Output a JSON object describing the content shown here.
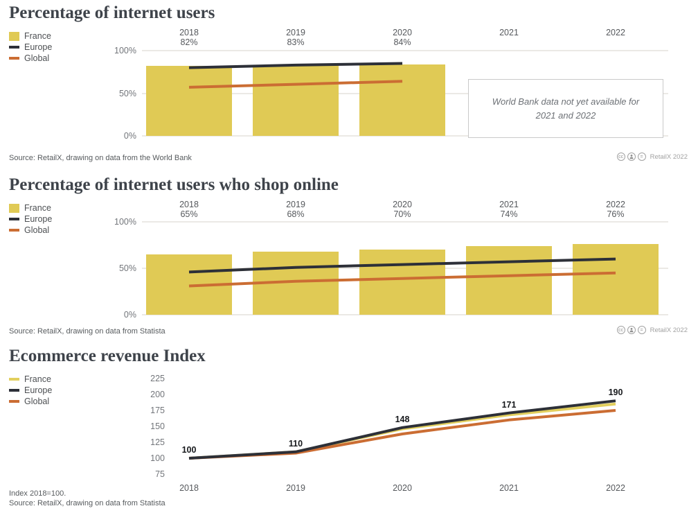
{
  "colors": {
    "france_bar": "#e0ca55",
    "france_line": "#e2cf5e",
    "europe_line": "#2d3038",
    "global_line": "#cb6d33",
    "gridline": "#ebe9e5",
    "title_text": "#3e434a"
  },
  "attribution_icons": [
    "cc-icon",
    "attribution-person-icon",
    "equals-icon"
  ],
  "chart_data": [
    {
      "type": "bar+line",
      "title": "Percentage of internet users",
      "categories": [
        "2018",
        "2019",
        "2020",
        "2021",
        "2022"
      ],
      "value_labels": [
        "82%",
        "83%",
        "84%",
        "",
        ""
      ],
      "y_ticks": [
        "100%",
        "50%",
        "0%"
      ],
      "ylim": [
        0,
        100
      ],
      "legend": [
        "France",
        "Europe",
        "Global"
      ],
      "series": [
        {
          "name": "France",
          "type": "bar",
          "color": "#e0ca55",
          "values": [
            82,
            83,
            84,
            null,
            null
          ]
        },
        {
          "name": "Europe",
          "type": "line",
          "color": "#2d3038",
          "values": [
            80,
            83,
            85,
            null,
            null
          ]
        },
        {
          "name": "Global",
          "type": "line",
          "color": "#cb6d33",
          "values": [
            57,
            60.5,
            64,
            null,
            null
          ]
        }
      ],
      "note": "World Bank data not yet available for 2021 and 2022",
      "note_lines": [
        "World Bank data not yet",
        "available for 2021 and 2022"
      ],
      "source": "Source: RetailX, drawing on data from the World Bank",
      "attribution": "RetailX 2022"
    },
    {
      "type": "bar+line",
      "title": "Percentage of internet users who shop online",
      "categories": [
        "2018",
        "2019",
        "2020",
        "2021",
        "2022"
      ],
      "value_labels": [
        "65%",
        "68%",
        "70%",
        "74%",
        "76%"
      ],
      "y_ticks": [
        "100%",
        "50%",
        "0%"
      ],
      "ylim": [
        0,
        100
      ],
      "legend": [
        "France",
        "Europe",
        "Global"
      ],
      "series": [
        {
          "name": "France",
          "type": "bar",
          "color": "#e0ca55",
          "values": [
            65,
            68,
            70,
            74,
            76
          ]
        },
        {
          "name": "Europe",
          "type": "line",
          "color": "#2d3038",
          "values": [
            46,
            51,
            54,
            57,
            60
          ]
        },
        {
          "name": "Global",
          "type": "line",
          "color": "#cb6d33",
          "values": [
            31,
            36,
            39,
            42,
            45
          ]
        }
      ],
      "source": "Source: RetailX, drawing on data from Statista",
      "attribution": "RetailX 2022"
    },
    {
      "type": "line",
      "title": "Ecommerce revenue Index",
      "categories": [
        "2018",
        "2019",
        "2020",
        "2021",
        "2022"
      ],
      "y_ticks": [
        "225",
        "200",
        "175",
        "150",
        "125",
        "100",
        "75"
      ],
      "ylim": [
        75,
        225
      ],
      "legend": [
        "France",
        "Europe",
        "Global"
      ],
      "series": [
        {
          "name": "France",
          "type": "line",
          "color": "#e2cf5e",
          "values": [
            100,
            110,
            146,
            168,
            185
          ]
        },
        {
          "name": "Europe",
          "type": "line",
          "color": "#2d3038",
          "values": [
            100,
            110,
            148,
            171,
            190
          ],
          "point_labels": [
            "100",
            "110",
            "148",
            "171",
            "190"
          ]
        },
        {
          "name": "Global",
          "type": "line",
          "color": "#cb6d33",
          "values": [
            100,
            108,
            138,
            160,
            175
          ]
        }
      ],
      "footnote": "Index 2018=100.",
      "source": "Source: RetailX, drawing on data from Statista"
    }
  ]
}
